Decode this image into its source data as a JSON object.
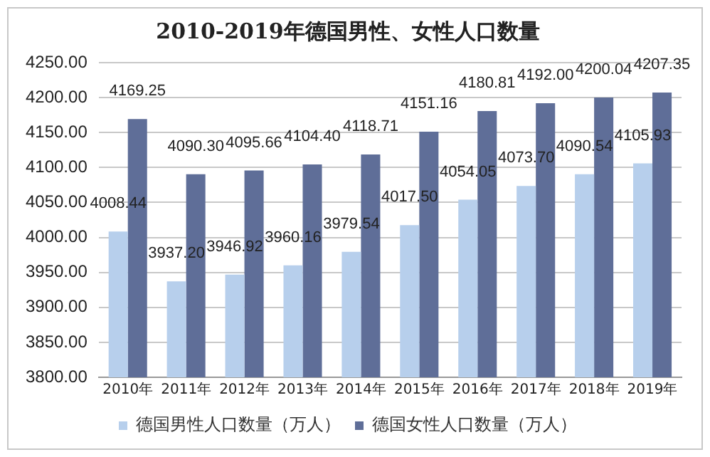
{
  "chart_data": {
    "type": "bar",
    "title": "2010-2019年德国男性、女性人口数量",
    "categories": [
      "2010年",
      "2011年",
      "2012年",
      "2013年",
      "2014年",
      "2015年",
      "2016年",
      "2017年",
      "2018年",
      "2019年"
    ],
    "series": [
      {
        "name": "德国男性人口数量（万人）",
        "color": "#b7cfec",
        "values": [
          4008.44,
          3937.2,
          3946.92,
          3960.16,
          3979.54,
          4017.5,
          4054.05,
          4073.7,
          4090.54,
          4105.93
        ],
        "value_labels": [
          "4008.44",
          "3937.20",
          "3946.92",
          "3960.16",
          "3979.54",
          "4017.50",
          "4054.05",
          "4073.70",
          "4090.54",
          "4105.93"
        ]
      },
      {
        "name": "德国女性人口数量（万人）",
        "color": "#5f6e98",
        "values": [
          4169.25,
          4090.3,
          4095.66,
          4104.4,
          4118.71,
          4151.16,
          4180.81,
          4192.0,
          4200.04,
          4207.35
        ],
        "value_labels": [
          "4169.25",
          "4090.30",
          "4095.66",
          "4104.40",
          "4118.71",
          "4151.16",
          "4180.81",
          "4192.00",
          "4200.04",
          "4207.35"
        ]
      }
    ],
    "ylim": [
      3800,
      4250
    ],
    "yticks": [
      {
        "value": 3800,
        "label": "3800.00"
      },
      {
        "value": 3850,
        "label": "3850.00"
      },
      {
        "value": 3900,
        "label": "3900.00"
      },
      {
        "value": 3950,
        "label": "3950.00"
      },
      {
        "value": 4000,
        "label": "4000.00"
      },
      {
        "value": 4050,
        "label": "4050.00"
      },
      {
        "value": 4100,
        "label": "4100.00"
      },
      {
        "value": 4150,
        "label": "4150.00"
      },
      {
        "value": 4200,
        "label": "4200.00"
      },
      {
        "value": 4250,
        "label": "4250.00"
      }
    ],
    "grid": "y",
    "legend": "bottom"
  }
}
